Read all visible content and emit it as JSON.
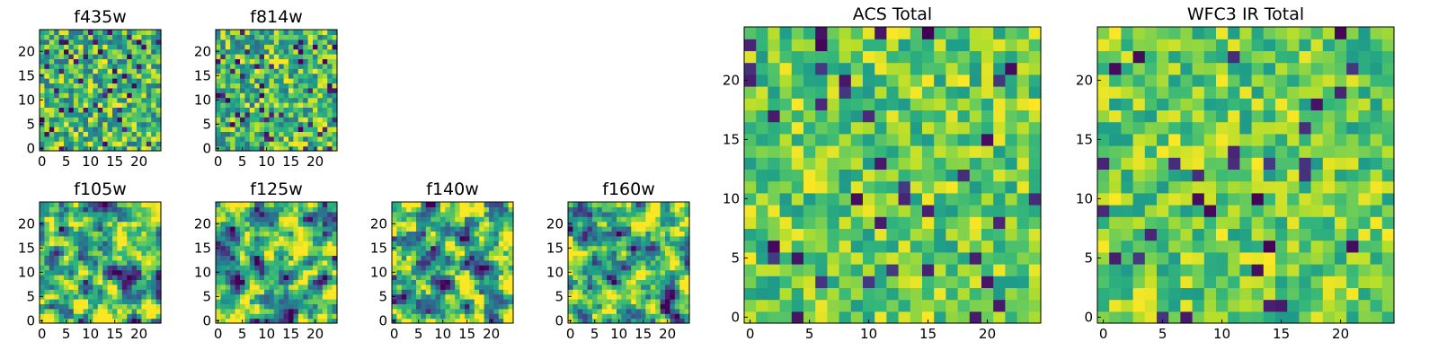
{
  "chart_data": [
    {
      "type": "heatmap",
      "title": "f435w",
      "grid": false,
      "xlim": [
        0,
        25
      ],
      "ylim": [
        0,
        25
      ],
      "x_ticks": [
        0,
        5,
        10,
        15,
        20
      ],
      "y_ticks": [
        0,
        5,
        10,
        15,
        20
      ],
      "cells": [
        25,
        25
      ],
      "colormap": "viridis",
      "variant": "mixed"
    },
    {
      "type": "heatmap",
      "title": "f814w",
      "grid": false,
      "xlim": [
        0,
        25
      ],
      "ylim": [
        0,
        25
      ],
      "x_ticks": [
        0,
        5,
        10,
        15,
        20
      ],
      "y_ticks": [
        0,
        5,
        10,
        15,
        20
      ],
      "cells": [
        25,
        25
      ],
      "colormap": "viridis",
      "variant": "mixed"
    },
    {
      "type": "heatmap",
      "title": "f105w",
      "grid": false,
      "xlim": [
        0,
        25
      ],
      "ylim": [
        0,
        25
      ],
      "x_ticks": [
        0,
        5,
        10,
        15,
        20
      ],
      "y_ticks": [
        0,
        5,
        10,
        15,
        20
      ],
      "cells": [
        25,
        25
      ],
      "colormap": "viridis",
      "variant": "smooth"
    },
    {
      "type": "heatmap",
      "title": "f125w",
      "grid": false,
      "xlim": [
        0,
        25
      ],
      "ylim": [
        0,
        25
      ],
      "x_ticks": [
        0,
        5,
        10,
        15,
        20
      ],
      "y_ticks": [
        0,
        5,
        10,
        15,
        20
      ],
      "cells": [
        25,
        25
      ],
      "colormap": "viridis",
      "variant": "smooth"
    },
    {
      "type": "heatmap",
      "title": "f140w",
      "grid": false,
      "xlim": [
        0,
        25
      ],
      "ylim": [
        0,
        25
      ],
      "x_ticks": [
        0,
        5,
        10,
        15,
        20
      ],
      "y_ticks": [
        0,
        5,
        10,
        15,
        20
      ],
      "cells": [
        25,
        25
      ],
      "colormap": "viridis",
      "variant": "smooth"
    },
    {
      "type": "heatmap",
      "title": "f160w",
      "grid": false,
      "xlim": [
        0,
        25
      ],
      "ylim": [
        0,
        25
      ],
      "x_ticks": [
        0,
        5,
        10,
        15,
        20
      ],
      "y_ticks": [
        0,
        5,
        10,
        15,
        20
      ],
      "cells": [
        25,
        25
      ],
      "colormap": "viridis",
      "variant": "smooth"
    },
    {
      "type": "heatmap",
      "title": "ACS Total",
      "grid": false,
      "xlim": [
        0,
        25
      ],
      "ylim": [
        0,
        25
      ],
      "x_ticks": [
        0,
        5,
        10,
        15,
        20
      ],
      "y_ticks": [
        0,
        5,
        10,
        15,
        20
      ],
      "cells": [
        25,
        25
      ],
      "colormap": "viridis",
      "variant": "bright"
    },
    {
      "type": "heatmap",
      "title": "WFC3 IR Total",
      "grid": false,
      "xlim": [
        0,
        25
      ],
      "ylim": [
        0,
        25
      ],
      "x_ticks": [
        0,
        5,
        10,
        15,
        20
      ],
      "y_ticks": [
        0,
        5,
        10,
        15,
        20
      ],
      "cells": [
        25,
        25
      ],
      "colormap": "viridis",
      "variant": "bright"
    }
  ]
}
